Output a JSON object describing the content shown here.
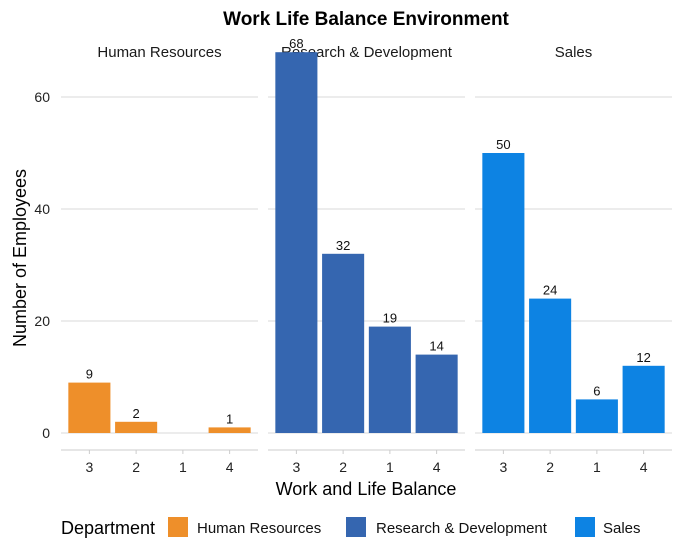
{
  "chart_data": {
    "type": "bar",
    "title": "Work Life Balance Environment",
    "xlabel": "Work and Life Balance",
    "ylabel": "Number of Employees",
    "ylim": [
      0,
      70
    ],
    "yticks": [
      0,
      20,
      40,
      60
    ],
    "grid": true,
    "legend": {
      "title": "Department",
      "position": "bottom",
      "entries": [
        "Human Resources",
        "Research & Development",
        "Sales"
      ]
    },
    "facets": [
      {
        "name": "Human Resources",
        "color": "#EE8F2A",
        "categories": [
          "3",
          "2",
          "1",
          "4"
        ],
        "values": [
          9,
          2,
          0,
          1
        ],
        "labels": [
          "9",
          "2",
          "",
          "1"
        ]
      },
      {
        "name": "Research & Development",
        "color": "#3566B0",
        "categories": [
          "3",
          "2",
          "1",
          "4"
        ],
        "values": [
          68,
          32,
          19,
          14
        ],
        "labels": [
          "68",
          "32",
          "19",
          "14"
        ]
      },
      {
        "name": "Sales",
        "color": "#0D83E3",
        "categories": [
          "3",
          "2",
          "1",
          "4"
        ],
        "values": [
          50,
          24,
          6,
          12
        ],
        "labels": [
          "50",
          "24",
          "6",
          "12"
        ]
      }
    ]
  }
}
